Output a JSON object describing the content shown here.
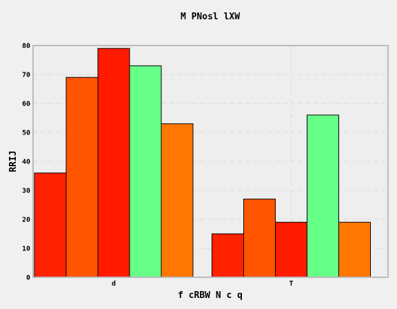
{
  "chart_data": {
    "type": "bar",
    "title": "M  PNosl lXW",
    "xlabel": "f  cRBW N c q",
    "ylabel": "RRIJ",
    "categories": [
      "d",
      "T"
    ],
    "series": [
      {
        "values": [
          36,
          15
        ],
        "color": "#ff2200"
      },
      {
        "values": [
          69,
          27
        ],
        "color": "#ff5500"
      },
      {
        "values": [
          79,
          19
        ],
        "color": "#ff1a00"
      },
      {
        "values": [
          73,
          56
        ],
        "color": "#66ff88"
      },
      {
        "values": [
          53,
          19
        ],
        "color": "#ff7700"
      }
    ],
    "ylim": [
      0,
      80
    ],
    "yticks": [
      0,
      10,
      20,
      30,
      40,
      50,
      60,
      70,
      80
    ],
    "grid": true,
    "background": "#eeeeee",
    "frame_color": "#bbbbbb"
  }
}
